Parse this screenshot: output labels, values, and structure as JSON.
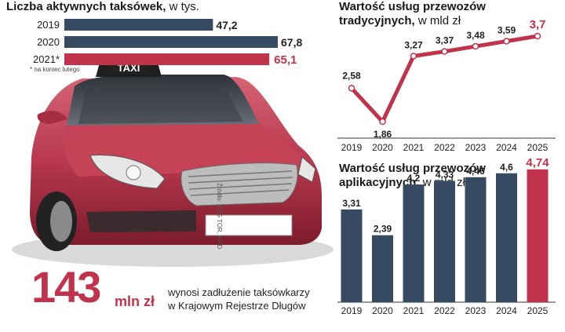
{
  "taxi_count": {
    "title": "Liczba aktywnych taksówek,",
    "unit": "w tys.",
    "note": "* na koniec lutego",
    "highlight_color": "#c0334a",
    "bar_color": "#364b62",
    "chart_data": {
      "type": "bar",
      "orientation": "horizontal",
      "categories": [
        "2019",
        "2020",
        "2021*"
      ],
      "values": [
        47.2,
        67.8,
        65.1
      ],
      "value_labels": [
        "47,2",
        "67,8",
        "65,1"
      ]
    }
  },
  "traditional": {
    "title": "Wartość usług przewozów tradycyjnych,",
    "unit": "w mld zł",
    "line_color": "#c0334a",
    "chart_data": {
      "type": "line",
      "x": [
        "2019",
        "2020",
        "2021",
        "2022",
        "2023",
        "2024",
        "2025"
      ],
      "values": [
        2.58,
        1.86,
        3.27,
        3.37,
        3.48,
        3.59,
        3.7
      ],
      "value_labels": [
        "2,58",
        "1,86",
        "3,27",
        "3,37",
        "3,48",
        "3,59",
        "3,7"
      ]
    }
  },
  "app_based": {
    "title": "Wartość usług przewozów aplikacyjnych,",
    "unit": "w mld zł",
    "bar_color": "#364b62",
    "highlight_color": "#c0334a",
    "chart_data": {
      "type": "bar",
      "categories": [
        "2019",
        "2020",
        "2021",
        "2022",
        "2023",
        "2024",
        "2025"
      ],
      "values": [
        3.31,
        2.39,
        4.2,
        4.33,
        4.46,
        4.6,
        4.74
      ],
      "value_labels": [
        "3,31",
        "2,39",
        "4,2",
        "4,33",
        "4,46",
        "4,6",
        "4,74"
      ]
    }
  },
  "taxi_sign": "TAXI",
  "source": "Źródło: ZDG TOR, KRD",
  "debt": {
    "value": "143",
    "unit": "mln zł",
    "line1": "wynosi zadłużenie taksówkarzy",
    "line2": "w Krajowym Rejestrze Długów"
  }
}
